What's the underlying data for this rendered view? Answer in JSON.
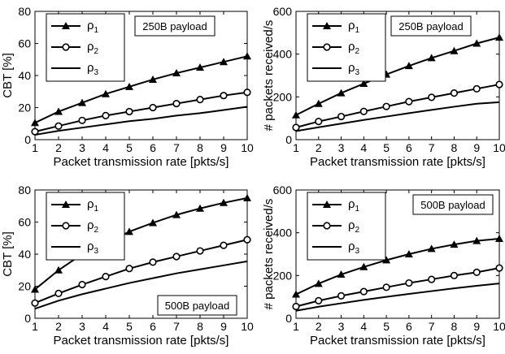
{
  "chart_data": [
    {
      "type": "line",
      "xlabel": "Packet transmission rate [pkts/s]",
      "ylabel": "CBT [%]",
      "annotation": "250B payload",
      "xlim": [
        1,
        10
      ],
      "ylim": [
        0,
        80
      ],
      "xticks": [
        1,
        2,
        3,
        4,
        5,
        6,
        7,
        8,
        9,
        10
      ],
      "yticks": [
        0,
        20,
        40,
        60,
        80
      ],
      "grid": false,
      "legend_position": "top-left",
      "x": [
        1,
        2,
        3,
        4,
        5,
        6,
        7,
        8,
        9,
        10
      ],
      "series": [
        {
          "name": "ρ1",
          "marker": "triangle",
          "values": [
            10.5,
            17.5,
            23,
            28.5,
            33,
            37.5,
            41.5,
            45,
            48.5,
            52
          ]
        },
        {
          "name": "ρ2",
          "marker": "circle",
          "values": [
            5,
            8.5,
            12,
            15,
            17.5,
            20,
            22.5,
            25,
            27.5,
            29.5
          ]
        },
        {
          "name": "ρ3",
          "marker": "none",
          "values": [
            3,
            5.5,
            7.5,
            9.5,
            11.5,
            13,
            15,
            16.5,
            18.5,
            20.5
          ]
        }
      ]
    },
    {
      "type": "line",
      "xlabel": "Packet transmission rate [pkts/s]",
      "ylabel": "# packets received/s",
      "annotation": "250B payload",
      "xlim": [
        1,
        10
      ],
      "ylim": [
        0,
        600
      ],
      "xticks": [
        1,
        2,
        3,
        4,
        5,
        6,
        7,
        8,
        9,
        10
      ],
      "yticks": [
        0,
        200,
        400,
        600
      ],
      "grid": false,
      "legend_position": "top-left",
      "x": [
        1,
        2,
        3,
        4,
        5,
        6,
        7,
        8,
        9,
        10
      ],
      "series": [
        {
          "name": "ρ1",
          "marker": "triangle",
          "values": [
            115,
            168,
            218,
            262,
            305,
            345,
            382,
            415,
            450,
            478
          ]
        },
        {
          "name": "ρ2",
          "marker": "circle",
          "values": [
            57,
            85,
            108,
            132,
            155,
            178,
            198,
            218,
            238,
            258
          ]
        },
        {
          "name": "ρ3",
          "marker": "none",
          "values": [
            40,
            58,
            75,
            92,
            108,
            124,
            139,
            154,
            168,
            175
          ]
        }
      ]
    },
    {
      "type": "line",
      "xlabel": "Packet transmission rate [pkts/s]",
      "ylabel": "CBT [%]",
      "annotation": "500B payload",
      "xlim": [
        1,
        10
      ],
      "ylim": [
        0,
        80
      ],
      "xticks": [
        1,
        2,
        3,
        4,
        5,
        6,
        7,
        8,
        9,
        10
      ],
      "yticks": [
        0,
        20,
        40,
        60,
        80
      ],
      "grid": false,
      "legend_position": "top-left",
      "x": [
        1,
        2,
        3,
        4,
        5,
        6,
        7,
        8,
        9,
        10
      ],
      "series": [
        {
          "name": "ρ1",
          "marker": "triangle",
          "values": [
            18,
            30,
            40,
            47,
            54,
            59.5,
            64.5,
            68.5,
            72,
            75
          ]
        },
        {
          "name": "ρ2",
          "marker": "circle",
          "values": [
            9.5,
            15.5,
            21,
            26,
            31,
            35,
            38.5,
            42,
            45.5,
            49
          ]
        },
        {
          "name": "ρ3",
          "marker": "none",
          "values": [
            6,
            11,
            15,
            18.5,
            22,
            25,
            28,
            30.5,
            33,
            35.5
          ]
        }
      ]
    },
    {
      "type": "line",
      "xlabel": "Packet transmission rate [pkts/s]",
      "ylabel": "# packets received/s",
      "annotation": "500B payload",
      "xlim": [
        1,
        10
      ],
      "ylim": [
        0,
        600
      ],
      "xticks": [
        1,
        2,
        3,
        4,
        5,
        6,
        7,
        8,
        9,
        10
      ],
      "yticks": [
        0,
        200,
        400,
        600
      ],
      "grid": false,
      "legend_position": "top-left",
      "x": [
        1,
        2,
        3,
        4,
        5,
        6,
        7,
        8,
        9,
        10
      ],
      "series": [
        {
          "name": "ρ1",
          "marker": "triangle",
          "values": [
            112,
            162,
            205,
            240,
            272,
            300,
            325,
            345,
            362,
            372
          ]
        },
        {
          "name": "ρ2",
          "marker": "circle",
          "values": [
            55,
            82,
            105,
            125,
            145,
            165,
            182,
            200,
            215,
            235
          ]
        },
        {
          "name": "ρ3",
          "marker": "none",
          "values": [
            35,
            54,
            70,
            86,
            100,
            114,
            127,
            140,
            152,
            163
          ]
        }
      ]
    }
  ]
}
